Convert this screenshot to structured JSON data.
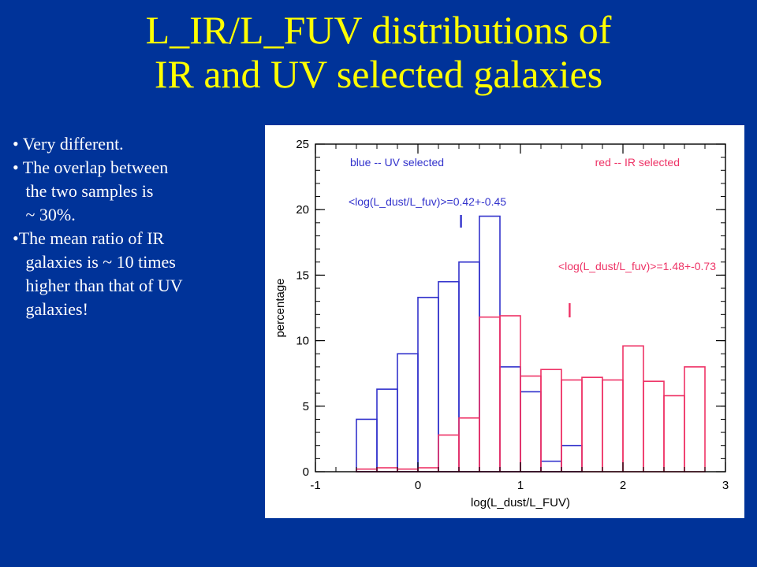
{
  "title": {
    "line1": "L_IR/L_FUV distributions of",
    "line2": "IR and UV selected galaxies"
  },
  "bullets": [
    "• Very different.",
    "• The overlap between",
    "   the two samples is",
    "   ~ 30%.",
    "•The mean ratio of IR",
    "   galaxies is ~ 10 times",
    "   higher than that of UV",
    "   galaxies!"
  ],
  "chart_data": {
    "type": "bar",
    "xlabel": "log(L_dust/L_FUV)",
    "ylabel": "percentage",
    "xlim": [
      -1,
      3
    ],
    "ylim": [
      0,
      25
    ],
    "xticks": [
      -1,
      0,
      1,
      2,
      3
    ],
    "yticks": [
      0,
      5,
      10,
      15,
      20,
      25
    ],
    "bin_width": 0.2,
    "series": [
      {
        "color": "#3333cc",
        "bin_starts": [
          -0.6,
          -0.4,
          -0.2,
          0.0,
          0.2,
          0.4,
          0.6,
          0.8,
          1.0,
          1.2,
          1.4,
          1.6
        ],
        "values": [
          4.0,
          6.3,
          9.0,
          13.3,
          14.5,
          16.0,
          19.5,
          8.0,
          6.1,
          0.8,
          2.0,
          0.0
        ]
      },
      {
        "color": "#ee3366",
        "bin_starts": [
          -0.6,
          -0.4,
          -0.2,
          0.0,
          0.2,
          0.4,
          0.6,
          0.8,
          1.0,
          1.2,
          1.4,
          1.6,
          1.8,
          2.0,
          2.2,
          2.4,
          2.6
        ],
        "values": [
          0.2,
          0.3,
          0.2,
          0.3,
          2.8,
          4.1,
          11.8,
          11.9,
          7.3,
          7.8,
          7.0,
          7.2,
          7.0,
          9.6,
          6.9,
          5.8,
          8.0
        ]
      }
    ],
    "annotations": [
      {
        "text": "blue -- UV selected",
        "color": "#3333cc"
      },
      {
        "text": "red -- IR selected",
        "color": "#ee3366"
      },
      {
        "text": "<log(L_dust/L_fuv)>=0.42+-0.45",
        "color": "#3333cc"
      },
      {
        "text": "<log(L_dust/L_fuv)>=1.48+-0.73",
        "color": "#ee3366"
      }
    ],
    "mean_markers": [
      {
        "x": 0.42,
        "color": "#3333cc"
      },
      {
        "x": 1.48,
        "color": "#ee3366"
      }
    ]
  }
}
